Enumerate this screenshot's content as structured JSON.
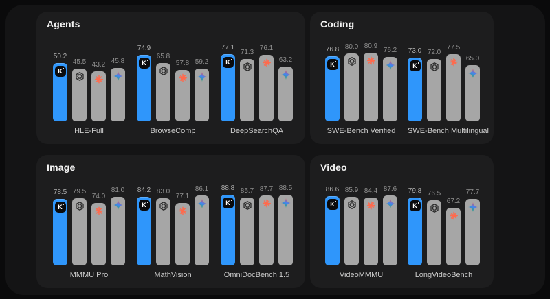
{
  "colors": {
    "page_background": "#0a0a0b",
    "card_background": "#141415",
    "panel_background": "#1d1d1e",
    "kimi_bar_blue": "#2f96fb",
    "default_bar_gray": "#a6a6a6",
    "claude_starburst_orange": "#ff6a4d",
    "gemini_blue": "#4285f4",
    "gemini_red": "#ff4d42",
    "gemini_green": "#34a853",
    "openai_logo_dark": "#2c2c2c",
    "title_text": "#f2f2f2",
    "value_label_text": "#8f8f8f",
    "benchmark_label_text": "#cbcbcb"
  },
  "legend_models": [
    {
      "name": "kimi",
      "icon": "kimi-k-badge-icon",
      "badge_letter": "K",
      "bar_color": "#2f96fb"
    },
    {
      "name": "openai",
      "icon": "openai-logo-icon",
      "bar_color": "#a6a6a6"
    },
    {
      "name": "claude",
      "icon": "claude-starburst-icon",
      "bar_color": "#a6a6a6"
    },
    {
      "name": "gemini",
      "icon": "gemini-sparkle-icon",
      "bar_color": "#a6a6a6"
    }
  ],
  "chart_data": [
    {
      "type": "bar",
      "title": "Agents",
      "categories": [
        "HLE-Full",
        "BrowseComp",
        "DeepSearchQA"
      ],
      "series": [
        {
          "name": "kimi-k-badge",
          "values": [
            50.2,
            74.9,
            77.1
          ]
        },
        {
          "name": "openai-logo",
          "values": [
            45.5,
            65.8,
            71.3
          ]
        },
        {
          "name": "claude-starburst",
          "values": [
            43.2,
            57.8,
            76.1
          ]
        },
        {
          "name": "gemini-sparkle",
          "values": [
            45.8,
            59.2,
            63.2
          ]
        }
      ],
      "value_labels_shown": true,
      "axes_shown": false,
      "legend": "icons-on-bars"
    },
    {
      "type": "bar",
      "title": "Coding",
      "categories": [
        "SWE-Bench Verified",
        "SWE-Bench Multilingual"
      ],
      "series": [
        {
          "name": "kimi-k-badge",
          "values": [
            76.8,
            73.0
          ]
        },
        {
          "name": "openai-logo",
          "values": [
            80.0,
            72.0
          ]
        },
        {
          "name": "claude-starburst",
          "values": [
            80.9,
            77.5
          ]
        },
        {
          "name": "gemini-sparkle",
          "values": [
            76.2,
            65.0
          ]
        }
      ],
      "value_labels_shown": true,
      "axes_shown": false,
      "legend": "icons-on-bars"
    },
    {
      "type": "bar",
      "title": "Image",
      "categories": [
        "MMMU Pro",
        "MathVision",
        "OmniDocBench 1.5"
      ],
      "series": [
        {
          "name": "kimi-k-badge",
          "values": [
            78.5,
            84.2,
            88.8
          ]
        },
        {
          "name": "openai-logo",
          "values": [
            79.5,
            83.0,
            85.7
          ]
        },
        {
          "name": "claude-starburst",
          "values": [
            74.0,
            77.1,
            87.7
          ]
        },
        {
          "name": "gemini-sparkle",
          "values": [
            81.0,
            86.1,
            88.5
          ]
        }
      ],
      "value_labels_shown": true,
      "axes_shown": false,
      "legend": "icons-on-bars"
    },
    {
      "type": "bar",
      "title": "Video",
      "categories": [
        "VideoMMMU",
        "LongVideoBench"
      ],
      "series": [
        {
          "name": "kimi-k-badge",
          "values": [
            86.6,
            79.8
          ]
        },
        {
          "name": "openai-logo",
          "values": [
            85.9,
            76.5
          ]
        },
        {
          "name": "claude-starburst",
          "values": [
            84.4,
            67.2
          ]
        },
        {
          "name": "gemini-sparkle",
          "values": [
            87.6,
            77.7
          ]
        }
      ],
      "value_labels_shown": true,
      "axes_shown": false,
      "legend": "icons-on-bars"
    }
  ]
}
